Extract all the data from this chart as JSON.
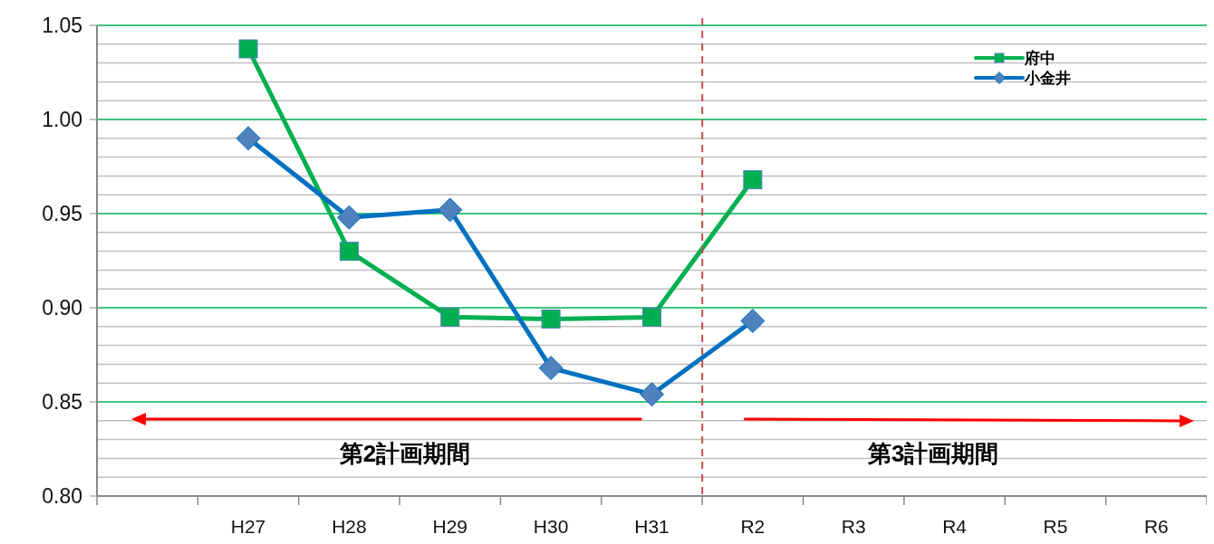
{
  "chart_data": {
    "type": "line",
    "categories": [
      null,
      "H27",
      "H28",
      "H29",
      "H30",
      "H31",
      "R2",
      "R3",
      "R4",
      "R5",
      "R6"
    ],
    "series": [
      {
        "name": "府中",
        "color": "#00b050",
        "marker": "square",
        "values": [
          null,
          1.0375,
          0.93,
          0.895,
          0.894,
          0.895,
          0.968,
          null,
          null,
          null,
          null
        ]
      },
      {
        "name": "小金井",
        "color": "#0070c0",
        "marker": "diamond",
        "values": [
          null,
          0.99,
          0.948,
          0.952,
          0.868,
          0.854,
          0.893,
          null,
          null,
          null,
          null
        ]
      }
    ],
    "ylim": [
      0.8,
      1.05
    ],
    "yticks": [
      {
        "value": 0.8,
        "label": "0.80"
      },
      {
        "value": 0.81,
        "label": null
      },
      {
        "value": 0.82,
        "label": null
      },
      {
        "value": 0.83,
        "label": null
      },
      {
        "value": 0.84,
        "label": null
      },
      {
        "value": 0.85,
        "label": "0.85"
      },
      {
        "value": 0.86,
        "label": null
      },
      {
        "value": 0.87,
        "label": null
      },
      {
        "value": 0.88,
        "label": null
      },
      {
        "value": 0.89,
        "label": null
      },
      {
        "value": 0.9,
        "label": "0.90"
      },
      {
        "value": 0.91,
        "label": null
      },
      {
        "value": 0.92,
        "label": null
      },
      {
        "value": 0.93,
        "label": null
      },
      {
        "value": 0.94,
        "label": null
      },
      {
        "value": 0.95,
        "label": "0.95"
      },
      {
        "value": 0.96,
        "label": null
      },
      {
        "value": 0.97,
        "label": null
      },
      {
        "value": 0.98,
        "label": null
      },
      {
        "value": 0.99,
        "label": null
      },
      {
        "value": 1.0,
        "label": "1.00"
      },
      {
        "value": 1.01,
        "label": null
      },
      {
        "value": 1.02,
        "label": null
      },
      {
        "value": 1.03,
        "label": null
      },
      {
        "value": 1.04,
        "label": null
      },
      {
        "value": 1.05,
        "label": "1.05"
      }
    ],
    "grid": "y",
    "legend": "top right",
    "ref_lines": [
      {
        "axis": "x",
        "value": "R2",
        "color": "#c0504d",
        "line_style": "dashed"
      }
    ],
    "line_style": "solid",
    "annotations": [
      "第2計画期間",
      "第3計画期間"
    ]
  }
}
